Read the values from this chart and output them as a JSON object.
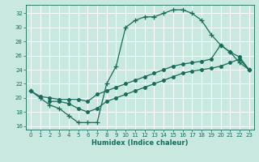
{
  "background_color": "#c8e8e0",
  "grid_color": "#ffffff",
  "line_color": "#1a6b5a",
  "xlabel": "Humidex (Indice chaleur)",
  "xlim": [
    -0.5,
    23.5
  ],
  "ylim": [
    15.5,
    33.2
  ],
  "xticks": [
    0,
    1,
    2,
    3,
    4,
    5,
    6,
    7,
    8,
    9,
    10,
    11,
    12,
    13,
    14,
    15,
    16,
    17,
    18,
    19,
    20,
    21,
    22,
    23
  ],
  "yticks": [
    16,
    18,
    20,
    22,
    24,
    26,
    28,
    30,
    32
  ],
  "curve1_x": [
    0,
    1,
    2,
    3,
    4,
    5,
    6,
    7,
    8,
    9,
    10,
    11,
    12,
    13,
    14,
    15,
    16,
    17,
    18,
    19,
    20,
    21,
    22,
    23
  ],
  "curve1_y": [
    21.0,
    20.0,
    19.0,
    18.5,
    17.5,
    16.5,
    16.5,
    16.5,
    22.0,
    24.5,
    30.0,
    31.0,
    31.5,
    31.5,
    32.0,
    32.5,
    32.5,
    32.0,
    31.0,
    29.0,
    27.5,
    26.5,
    25.0,
    24.0
  ],
  "curve2_x": [
    0,
    1,
    2,
    3,
    4,
    5,
    6,
    7,
    8,
    9,
    10,
    11,
    12,
    13,
    14,
    15,
    16,
    17,
    18,
    19,
    20,
    21,
    22,
    23
  ],
  "curve2_y": [
    21.0,
    20.2,
    20.0,
    19.8,
    19.8,
    19.8,
    19.5,
    20.5,
    21.0,
    21.5,
    22.0,
    22.5,
    23.0,
    23.5,
    24.0,
    24.5,
    24.8,
    25.0,
    25.2,
    25.5,
    27.5,
    26.5,
    25.8,
    24.0
  ],
  "curve3_x": [
    2,
    3,
    4,
    5,
    6,
    7,
    8,
    9,
    10,
    11,
    12,
    13,
    14,
    15,
    16,
    17,
    18,
    19,
    20,
    21,
    22,
    23
  ],
  "curve3_y": [
    19.5,
    19.5,
    19.2,
    18.5,
    18.0,
    18.5,
    19.5,
    20.0,
    20.5,
    21.0,
    21.5,
    22.0,
    22.5,
    23.0,
    23.5,
    23.8,
    24.0,
    24.2,
    24.5,
    25.0,
    25.5,
    24.0
  ],
  "marker_style1": "+",
  "marker_style2": "o",
  "marker_style3": "o",
  "marker_size1": 4,
  "marker_size2": 2.5,
  "marker_size3": 2.5
}
